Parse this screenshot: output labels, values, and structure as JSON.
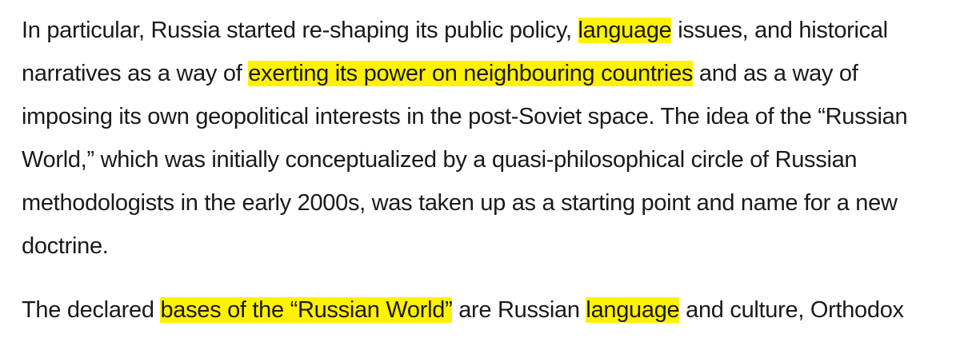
{
  "paragraphs": [
    {
      "segments": [
        {
          "text": "In particular, Russia started re-shaping its public policy, ",
          "highlight": false
        },
        {
          "text": "language",
          "highlight": true
        },
        {
          "text": " issues, and historical narratives as a way of ",
          "highlight": false
        },
        {
          "text": "exerting its power on neighbouring countries",
          "highlight": true
        },
        {
          "text": " and as a way of imposing its own geopolitical interests in the post-Soviet space. The idea of the “Russian World,” which was initially conceptualized by a quasi-philosophical circle of Russian methodologists in the early 2000s, was taken up as a starting point and name for a new doctrine.",
          "highlight": false
        }
      ]
    },
    {
      "segments": [
        {
          "text": "The declared ",
          "highlight": false
        },
        {
          "text": "bases of the “Russian World”",
          "highlight": true
        },
        {
          "text": " are Russian ",
          "highlight": false
        },
        {
          "text": "language",
          "highlight": true
        },
        {
          "text": " and culture, Orthodox",
          "highlight": false
        }
      ]
    }
  ],
  "highlight_color": "#fff200"
}
